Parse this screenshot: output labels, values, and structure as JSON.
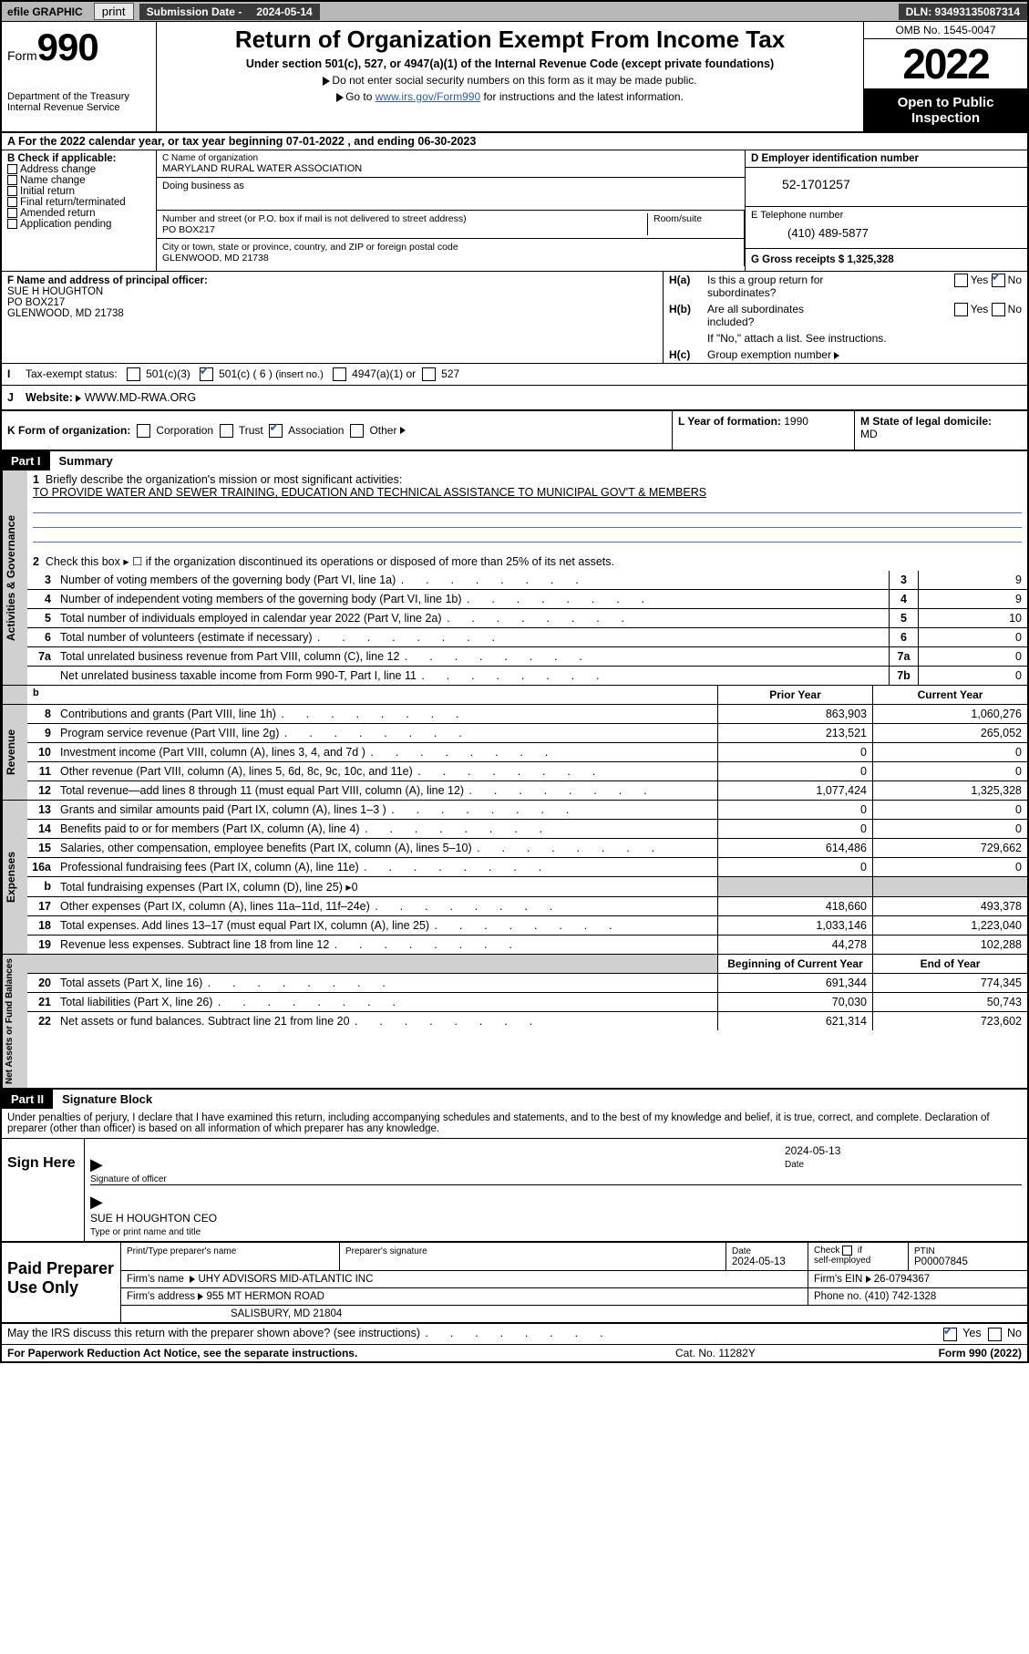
{
  "topbar": {
    "efile": "efile GRAPHIC",
    "print": "print",
    "subdate_lbl": "Submission Date - ",
    "subdate_val": "2024-05-14",
    "dln": "DLN: 93493135087314"
  },
  "header": {
    "form_word": "Form",
    "form_num": "990",
    "dept": "Department of the Treasury",
    "irs": "Internal Revenue Service",
    "title": "Return of Organization Exempt From Income Tax",
    "sub1": "Under section 501(c), 527, or 4947(a)(1) of the Internal Revenue Code (except private foundations)",
    "sub2": "Do not enter social security numbers on this form as it may be made public.",
    "sub3a": "Go to ",
    "sub3link": "www.irs.gov/Form990",
    "sub3b": " for instructions and the latest information.",
    "omb": "OMB No. 1545-0047",
    "year": "2022",
    "otp1": "Open to Public",
    "otp2": "Inspection"
  },
  "rowA": "A  For the 2022 calendar year, or tax year beginning 07-01-2022   , and ending 06-30-2023",
  "colB": {
    "hdr": "B Check if applicable:",
    "items": [
      "Address change",
      "Name change",
      "Initial return",
      "Final return/terminated",
      "Amended return",
      "Application pending"
    ]
  },
  "org": {
    "name_lbl": "C Name of organization",
    "name_val": "MARYLAND RURAL WATER ASSOCIATION",
    "dba_lbl": "Doing business as",
    "street_lbl": "Number and street (or P.O. box if mail is not delivered to street address)",
    "street_val": "PO BOX217",
    "room_lbl": "Room/suite",
    "city_lbl": "City or town, state or province, country, and ZIP or foreign postal code",
    "city_val": "GLENWOOD, MD  21738"
  },
  "colD": {
    "ein_lbl": "D Employer identification number",
    "ein_val": "52-1701257",
    "phone_lbl": "E Telephone number",
    "phone_val": "(410) 489-5877",
    "gross_lbl": "G Gross receipts $ ",
    "gross_val": "1,325,328"
  },
  "F": {
    "lbl": "F Name and address of principal officer:",
    "l1": "SUE H HOUGHTON",
    "l2": "PO BOX217",
    "l3": "GLENWOOD, MD  21738"
  },
  "H": {
    "a_lbl": "H(a)",
    "a_txt1": "Is this a group return for",
    "a_txt2": "subordinates?",
    "b_lbl": "H(b)",
    "b_txt1": "Are all subordinates",
    "b_txt2": "included?",
    "note": "If \"No,\" attach a list. See instructions.",
    "c_lbl": "H(c)",
    "c_txt": "Group exemption number",
    "yes": "Yes",
    "no": "No"
  },
  "I": {
    "lbl": "Tax-exempt status:",
    "o1": "501(c)(3)",
    "o2a": "501(c) ( ",
    "o2num": "6",
    "o2b": " )",
    "o2arrow": "(insert no.)",
    "o3": "4947(a)(1) or",
    "o4": "527"
  },
  "J": {
    "lbl": "Website:",
    "val": "WWW.MD-RWA.ORG"
  },
  "K": {
    "lbl": "K Form of organization:",
    "o1": "Corporation",
    "o2": "Trust",
    "o3": "Association",
    "o4": "Other"
  },
  "L": {
    "lbl": "L Year of formation: ",
    "val": "1990"
  },
  "M": {
    "lbl": "M State of legal domicile:",
    "val": "MD"
  },
  "part1": {
    "num": "Part I",
    "title": "Summary"
  },
  "summary": {
    "s1_lbl": "1",
    "s1_txt": "Briefly describe the organization's mission or most significant activities:",
    "s1_mission": "TO PROVIDE WATER AND SEWER TRAINING, EDUCATION AND TECHNICAL ASSISTANCE TO MUNICIPAL GOV'T & MEMBERS",
    "s2_lbl": "2",
    "s2_txt": "Check this box ▸ ☐  if the organization discontinued its operations or disposed of more than 25% of its net assets.",
    "lines_gov": [
      {
        "n": "3",
        "t": "Number of voting members of the governing body (Part VI, line 1a)",
        "box": "3",
        "v": "9"
      },
      {
        "n": "4",
        "t": "Number of independent voting members of the governing body (Part VI, line 1b)",
        "box": "4",
        "v": "9"
      },
      {
        "n": "5",
        "t": "Total number of individuals employed in calendar year 2022 (Part V, line 2a)",
        "box": "5",
        "v": "10"
      },
      {
        "n": "6",
        "t": "Total number of volunteers (estimate if necessary)",
        "box": "6",
        "v": "0"
      },
      {
        "n": "7a",
        "t": "Total unrelated business revenue from Part VIII, column (C), line 12",
        "box": "7a",
        "v": "0"
      },
      {
        "n": "",
        "t": "Net unrelated business taxable income from Form 990-T, Part I, line 11",
        "box": "7b",
        "v": "0"
      }
    ],
    "prior_hdr": "Prior Year",
    "curr_hdr": "Current Year",
    "rev": [
      {
        "n": "8",
        "t": "Contributions and grants (Part VIII, line 1h)",
        "p": "863,903",
        "c": "1,060,276"
      },
      {
        "n": "9",
        "t": "Program service revenue (Part VIII, line 2g)",
        "p": "213,521",
        "c": "265,052"
      },
      {
        "n": "10",
        "t": "Investment income (Part VIII, column (A), lines 3, 4, and 7d )",
        "p": "0",
        "c": "0"
      },
      {
        "n": "11",
        "t": "Other revenue (Part VIII, column (A), lines 5, 6d, 8c, 9c, 10c, and 11e)",
        "p": "0",
        "c": "0"
      },
      {
        "n": "12",
        "t": "Total revenue—add lines 8 through 11 (must equal Part VIII, column (A), line 12)",
        "p": "1,077,424",
        "c": "1,325,328"
      }
    ],
    "exp": [
      {
        "n": "13",
        "t": "Grants and similar amounts paid (Part IX, column (A), lines 1–3 )",
        "p": "0",
        "c": "0"
      },
      {
        "n": "14",
        "t": "Benefits paid to or for members (Part IX, column (A), line 4)",
        "p": "0",
        "c": "0"
      },
      {
        "n": "15",
        "t": "Salaries, other compensation, employee benefits (Part IX, column (A), lines 5–10)",
        "p": "614,486",
        "c": "729,662"
      },
      {
        "n": "16a",
        "t": "Professional fundraising fees (Part IX, column (A), line 11e)",
        "p": "0",
        "c": "0"
      },
      {
        "n": "b",
        "t": "Total fundraising expenses (Part IX, column (D), line 25) ▸0",
        "p": "",
        "c": "",
        "gray": true
      },
      {
        "n": "17",
        "t": "Other expenses (Part IX, column (A), lines 11a–11d, 11f–24e)",
        "p": "418,660",
        "c": "493,378"
      },
      {
        "n": "18",
        "t": "Total expenses. Add lines 13–17 (must equal Part IX, column (A), line 25)",
        "p": "1,033,146",
        "c": "1,223,040"
      },
      {
        "n": "19",
        "t": "Revenue less expenses. Subtract line 18 from line 12",
        "p": "44,278",
        "c": "102,288"
      }
    ],
    "na_hdr1": "Beginning of Current Year",
    "na_hdr2": "End of Year",
    "na": [
      {
        "n": "20",
        "t": "Total assets (Part X, line 16)",
        "p": "691,344",
        "c": "774,345"
      },
      {
        "n": "21",
        "t": "Total liabilities (Part X, line 26)",
        "p": "70,030",
        "c": "50,743"
      },
      {
        "n": "22",
        "t": "Net assets or fund balances. Subtract line 21 from line 20",
        "p": "621,314",
        "c": "723,602"
      }
    ],
    "vlabels": {
      "gov": "Activities & Governance",
      "rev": "Revenue",
      "exp": "Expenses",
      "na": "Net Assets or\nFund Balances"
    }
  },
  "part2": {
    "num": "Part II",
    "title": "Signature Block"
  },
  "sig": {
    "decl": "Under penalties of perjury, I declare that I have examined this return, including accompanying schedules and statements, and to the best of my knowledge and belief, it is true, correct, and complete. Declaration of preparer (other than officer) is based on all information of which preparer has any knowledge.",
    "sign_here": "Sign Here",
    "sig_of_officer": "Signature of officer",
    "date_lbl": "Date",
    "date_val": "2024-05-13",
    "name": "SUE H HOUGHTON CEO",
    "name_lbl": "Type or print name and title"
  },
  "prep": {
    "lbl": "Paid Preparer Use Only",
    "h1": "Print/Type preparer's name",
    "h2": "Preparer's signature",
    "h3": "Date",
    "h3v": "2024-05-13",
    "h4a": "Check",
    "h4b": "if",
    "h4c": "self-employed",
    "h5": "PTIN",
    "h5v": "P00007845",
    "firm_name_lbl": "Firm's name",
    "firm_name": "UHY ADVISORS MID-ATLANTIC INC",
    "firm_ein_lbl": "Firm's EIN",
    "firm_ein": "26-0794367",
    "firm_addr_lbl": "Firm's address",
    "firm_addr1": "955 MT HERMON ROAD",
    "firm_addr2": "SALISBURY, MD  21804",
    "phone_lbl": "Phone no.",
    "phone": "(410) 742-1328"
  },
  "bottom": {
    "q": "May the IRS discuss this return with the preparer shown above? (see instructions)",
    "yes": "Yes",
    "no": "No"
  },
  "footer": {
    "l": "For Paperwork Reduction Act Notice, see the separate instructions.",
    "m": "Cat. No. 11282Y",
    "r": "Form 990 (2022)"
  },
  "colors": {
    "link": "#2a5db0",
    "gray": "#d0d0d0",
    "topbar": "#b8b8b8",
    "darkbar": "#3a3a3a"
  }
}
